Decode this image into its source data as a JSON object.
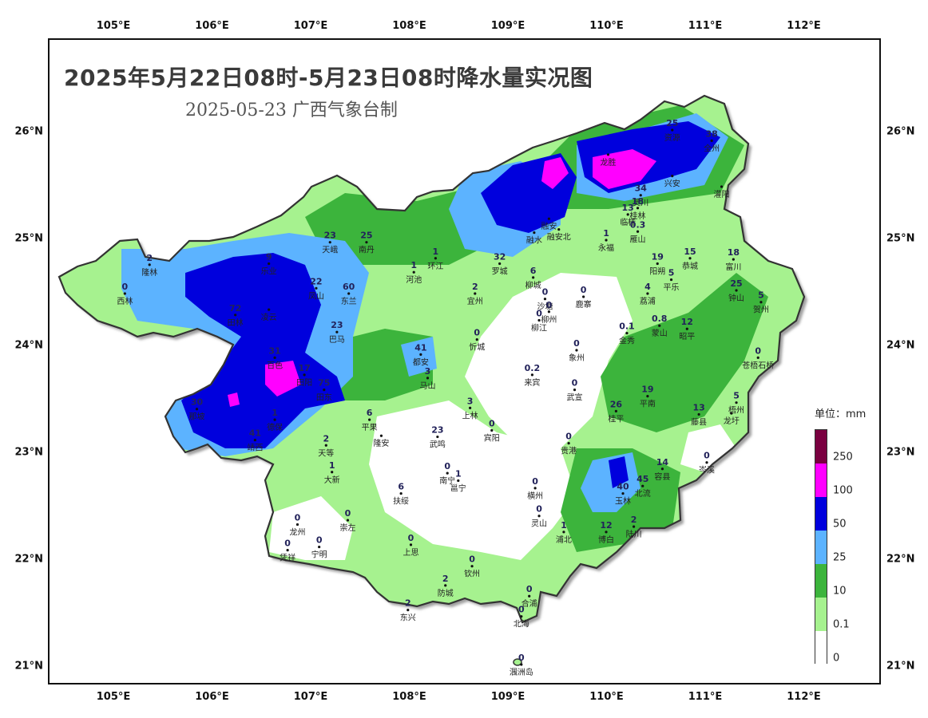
{
  "title": "2025年5月22日08时-5月23日08时降水量实况图",
  "subtitle": "2025-05-23 广西气象台制",
  "x_ticks": [
    "105°E",
    "106°E",
    "107°E",
    "108°E",
    "109°E",
    "110°E",
    "111°E",
    "112°E"
  ],
  "y_ticks": [
    "26°N",
    "25°N",
    "24°N",
    "23°N",
    "22°N",
    "21°N"
  ],
  "legend": {
    "title": "单位：mm",
    "levels": [
      {
        "label": "250",
        "color": "#7a0040"
      },
      {
        "label": "100",
        "color": "#ff00ff"
      },
      {
        "label": "50",
        "color": "#0000dd"
      },
      {
        "label": "25",
        "color": "#5cb3ff"
      },
      {
        "label": "10",
        "color": "#3cb43c"
      },
      {
        "label": "0.1",
        "color": "#a6f28f"
      },
      {
        "label": "0",
        "color": "#ffffff"
      }
    ]
  },
  "stations": [
    {
      "name": "资源",
      "value": "25",
      "lon": 110.65,
      "lat": 26.03
    },
    {
      "name": "全州",
      "value": "38",
      "lon": 111.05,
      "lat": 25.93
    },
    {
      "name": "龙胜",
      "value": "",
      "lon": 110.0,
      "lat": 25.8
    },
    {
      "name": "兴安",
      "value": "",
      "lon": 110.65,
      "lat": 25.6
    },
    {
      "name": "灌阳",
      "value": "",
      "lon": 111.15,
      "lat": 25.5
    },
    {
      "name": "灵川",
      "value": "34",
      "lon": 110.33,
      "lat": 25.42
    },
    {
      "name": "桂林",
      "value": "18",
      "lon": 110.3,
      "lat": 25.3
    },
    {
      "name": "临桂",
      "value": "13",
      "lon": 110.2,
      "lat": 25.24
    },
    {
      "name": "雁山",
      "value": "0.3",
      "lon": 110.3,
      "lat": 25.08
    },
    {
      "name": "永福",
      "value": "1",
      "lon": 109.98,
      "lat": 25.0
    },
    {
      "name": "融安",
      "value": "",
      "lon": 109.4,
      "lat": 25.2
    },
    {
      "name": "融水",
      "value": "",
      "lon": 109.25,
      "lat": 25.07
    },
    {
      "name": "罗城",
      "value": "32",
      "lon": 108.9,
      "lat": 24.78
    },
    {
      "name": "环江",
      "value": "1",
      "lon": 108.25,
      "lat": 24.83
    },
    {
      "name": "南丹",
      "value": "25",
      "lon": 107.55,
      "lat": 24.98
    },
    {
      "name": "天峨",
      "value": "23",
      "lon": 107.18,
      "lat": 24.98
    },
    {
      "name": "河池",
      "value": "1",
      "lon": 108.03,
      "lat": 24.7
    },
    {
      "name": "隆林",
      "value": "2",
      "lon": 105.35,
      "lat": 24.77
    },
    {
      "name": "乐业",
      "value": "9",
      "lon": 106.56,
      "lat": 24.78
    },
    {
      "name": "凤山",
      "value": "22",
      "lon": 107.04,
      "lat": 24.55
    },
    {
      "name": "东兰",
      "value": "60",
      "lon": 107.37,
      "lat": 24.5
    },
    {
      "name": "西林",
      "value": "0",
      "lon": 105.1,
      "lat": 24.5
    },
    {
      "name": "田林",
      "value": "72",
      "lon": 106.22,
      "lat": 24.3
    },
    {
      "name": "凌云",
      "value": "",
      "lon": 106.56,
      "lat": 24.35
    },
    {
      "name": "巴马",
      "value": "23",
      "lon": 107.25,
      "lat": 24.14
    },
    {
      "name": "宜州",
      "value": "2",
      "lon": 108.65,
      "lat": 24.5
    },
    {
      "name": "柳城",
      "value": "6",
      "lon": 109.24,
      "lat": 24.65
    },
    {
      "name": "沙塘",
      "value": "0",
      "lon": 109.36,
      "lat": 24.45
    },
    {
      "name": "柳州",
      "value": "0",
      "lon": 109.4,
      "lat": 24.33
    },
    {
      "name": "鹿寨",
      "value": "0",
      "lon": 109.75,
      "lat": 24.47
    },
    {
      "name": "柳江",
      "value": "0",
      "lon": 109.3,
      "lat": 24.25
    },
    {
      "name": "融安北",
      "value": "",
      "lon": 109.5,
      "lat": 25.1
    },
    {
      "name": "阳朔",
      "value": "19",
      "lon": 110.5,
      "lat": 24.78
    },
    {
      "name": "恭城",
      "value": "15",
      "lon": 110.83,
      "lat": 24.83
    },
    {
      "name": "富川",
      "value": "18",
      "lon": 111.27,
      "lat": 24.82
    },
    {
      "name": "平乐",
      "value": "5",
      "lon": 110.64,
      "lat": 24.63
    },
    {
      "name": "荔浦",
      "value": "4",
      "lon": 110.4,
      "lat": 24.5
    },
    {
      "name": "钟山",
      "value": "25",
      "lon": 111.3,
      "lat": 24.53
    },
    {
      "name": "贺州",
      "value": "5",
      "lon": 111.55,
      "lat": 24.42
    },
    {
      "name": "蒙山",
      "value": "0.8",
      "lon": 110.52,
      "lat": 24.2
    },
    {
      "name": "昭平",
      "value": "12",
      "lon": 110.8,
      "lat": 24.17
    },
    {
      "name": "金秀",
      "value": "0.1",
      "lon": 110.19,
      "lat": 24.13
    },
    {
      "name": "象州",
      "value": "0",
      "lon": 109.68,
      "lat": 23.97
    },
    {
      "name": "忻城",
      "value": "0",
      "lon": 108.67,
      "lat": 24.07
    },
    {
      "name": "都安",
      "value": "41",
      "lon": 108.1,
      "lat": 23.93
    },
    {
      "name": "马山",
      "value": "3",
      "lon": 108.17,
      "lat": 23.71
    },
    {
      "name": "来宾",
      "value": "0.2",
      "lon": 109.23,
      "lat": 23.74
    },
    {
      "name": "武宣",
      "value": "0",
      "lon": 109.66,
      "lat": 23.6
    },
    {
      "name": "苍梧石桥",
      "value": "0",
      "lon": 111.52,
      "lat": 23.9
    },
    {
      "name": "百色",
      "value": "31",
      "lon": 106.62,
      "lat": 23.9
    },
    {
      "name": "田阳",
      "value": "17",
      "lon": 106.92,
      "lat": 23.74
    },
    {
      "name": "田东",
      "value": "75",
      "lon": 107.12,
      "lat": 23.6
    },
    {
      "name": "那坡",
      "value": "30",
      "lon": 105.83,
      "lat": 23.42
    },
    {
      "name": "德保",
      "value": "1",
      "lon": 106.62,
      "lat": 23.32
    },
    {
      "name": "靖西",
      "value": "41",
      "lon": 106.42,
      "lat": 23.13
    },
    {
      "name": "平果",
      "value": "6",
      "lon": 107.58,
      "lat": 23.32
    },
    {
      "name": "隆安",
      "value": "",
      "lon": 107.7,
      "lat": 23.17
    },
    {
      "name": "天等",
      "value": "2",
      "lon": 107.14,
      "lat": 23.08
    },
    {
      "name": "上林",
      "value": "3",
      "lon": 108.6,
      "lat": 23.43
    },
    {
      "name": "宾阳",
      "value": "0",
      "lon": 108.82,
      "lat": 23.22
    },
    {
      "name": "武鸣",
      "value": "23",
      "lon": 108.27,
      "lat": 23.16
    },
    {
      "name": "桂平",
      "value": "26",
      "lon": 110.08,
      "lat": 23.4
    },
    {
      "name": "平南",
      "value": "19",
      "lon": 110.4,
      "lat": 23.54
    },
    {
      "name": "藤县",
      "value": "13",
      "lon": 110.92,
      "lat": 23.37
    },
    {
      "name": "梧州",
      "value": "5",
      "lon": 111.3,
      "lat": 23.48
    },
    {
      "name": "龙圩",
      "value": "",
      "lon": 111.25,
      "lat": 23.38
    },
    {
      "name": "贵港",
      "value": "0",
      "lon": 109.6,
      "lat": 23.1
    },
    {
      "name": "岑溪",
      "value": "0",
      "lon": 111.0,
      "lat": 22.92
    },
    {
      "name": "大新",
      "value": "1",
      "lon": 107.2,
      "lat": 22.83
    },
    {
      "name": "南宁",
      "value": "0",
      "lon": 108.37,
      "lat": 22.82
    },
    {
      "name": "邕宁",
      "value": "1",
      "lon": 108.48,
      "lat": 22.75
    },
    {
      "name": "横州",
      "value": "0",
      "lon": 109.26,
      "lat": 22.68
    },
    {
      "name": "容县",
      "value": "14",
      "lon": 110.55,
      "lat": 22.86
    },
    {
      "name": "玉林",
      "value": "40",
      "lon": 110.15,
      "lat": 22.63
    },
    {
      "name": "北流",
      "value": "45",
      "lon": 110.35,
      "lat": 22.7
    },
    {
      "name": "扶绥",
      "value": "6",
      "lon": 107.9,
      "lat": 22.63
    },
    {
      "name": "龙州",
      "value": "0",
      "lon": 106.85,
      "lat": 22.34
    },
    {
      "name": "崇左",
      "value": "0",
      "lon": 107.36,
      "lat": 22.38
    },
    {
      "name": "灵山",
      "value": "0",
      "lon": 109.3,
      "lat": 22.42
    },
    {
      "name": "浦北",
      "value": "1",
      "lon": 109.55,
      "lat": 22.27
    },
    {
      "name": "博白",
      "value": "12",
      "lon": 109.98,
      "lat": 22.27
    },
    {
      "name": "陆川",
      "value": "2",
      "lon": 110.26,
      "lat": 22.32
    },
    {
      "name": "上思",
      "value": "0",
      "lon": 108.0,
      "lat": 22.15
    },
    {
      "name": "宁明",
      "value": "0",
      "lon": 107.07,
      "lat": 22.13
    },
    {
      "name": "凭祥",
      "value": "0",
      "lon": 106.75,
      "lat": 22.1
    },
    {
      "name": "钦州",
      "value": "0",
      "lon": 108.62,
      "lat": 21.95
    },
    {
      "name": "防城",
      "value": "2",
      "lon": 108.35,
      "lat": 21.77
    },
    {
      "name": "合浦",
      "value": "0",
      "lon": 109.2,
      "lat": 21.67
    },
    {
      "name": "东兴",
      "value": "2",
      "lon": 107.97,
      "lat": 21.54
    },
    {
      "name": "北海",
      "value": "0",
      "lon": 109.12,
      "lat": 21.48
    },
    {
      "name": "涠洲岛",
      "value": "0",
      "lon": 109.12,
      "lat": 21.03
    }
  ]
}
